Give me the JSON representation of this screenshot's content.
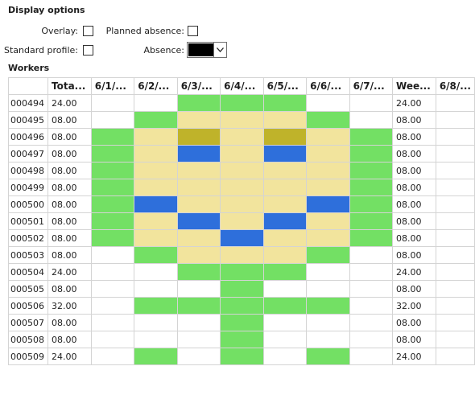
{
  "display_options": {
    "title": "Display options",
    "overlay_label": "Overlay:",
    "planned_absence_label": "Planned absence:",
    "standard_profile_label": "Standard profile:",
    "absence_label": "Absence:",
    "absence_color": "#000000"
  },
  "colors": {
    "green": "#73e064",
    "yellow": "#f2e49d",
    "olive": "#bfb32a",
    "blue": "#2e6fdb",
    "empty": "#ffffff"
  },
  "workers": {
    "title": "Workers",
    "columns": [
      "",
      "Tota...",
      "6/1/...",
      "6/2/...",
      "6/3/...",
      "6/4/...",
      "6/5/...",
      "6/6/...",
      "6/7/...",
      "Wee...",
      "6/8/..."
    ],
    "rows": [
      {
        "id": "000494",
        "total": "24.00",
        "week": "24.00",
        "cells": [
          "",
          "",
          "G",
          "G",
          "G",
          "",
          ""
        ]
      },
      {
        "id": "000495",
        "total": "08.00",
        "week": "08.00",
        "cells": [
          "",
          "G",
          "Y",
          "Y",
          "Y",
          "G",
          ""
        ]
      },
      {
        "id": "000496",
        "total": "08.00",
        "week": "08.00",
        "cells": [
          "G",
          "Y",
          "O",
          "Y",
          "O",
          "Y",
          "G"
        ]
      },
      {
        "id": "000497",
        "total": "08.00",
        "week": "08.00",
        "cells": [
          "G",
          "Y",
          "B",
          "Y",
          "B",
          "Y",
          "G"
        ]
      },
      {
        "id": "000498",
        "total": "08.00",
        "week": "08.00",
        "cells": [
          "G",
          "Y",
          "Y",
          "Y",
          "Y",
          "Y",
          "G"
        ]
      },
      {
        "id": "000499",
        "total": "08.00",
        "week": "08.00",
        "cells": [
          "G",
          "Y",
          "Y",
          "Y",
          "Y",
          "Y",
          "G"
        ]
      },
      {
        "id": "000500",
        "total": "08.00",
        "week": "08.00",
        "cells": [
          "G",
          "B",
          "Y",
          "Y",
          "Y",
          "B",
          "G"
        ]
      },
      {
        "id": "000501",
        "total": "08.00",
        "week": "08.00",
        "cells": [
          "G",
          "Y",
          "B",
          "Y",
          "B",
          "Y",
          "G"
        ]
      },
      {
        "id": "000502",
        "total": "08.00",
        "week": "08.00",
        "cells": [
          "G",
          "Y",
          "Y",
          "B",
          "Y",
          "Y",
          "G"
        ]
      },
      {
        "id": "000503",
        "total": "08.00",
        "week": "08.00",
        "cells": [
          "",
          "G",
          "Y",
          "Y",
          "Y",
          "G",
          ""
        ]
      },
      {
        "id": "000504",
        "total": "24.00",
        "week": "24.00",
        "cells": [
          "",
          "",
          "G",
          "G",
          "G",
          "",
          ""
        ]
      },
      {
        "id": "000505",
        "total": "08.00",
        "week": "08.00",
        "cells": [
          "",
          "",
          "",
          "G",
          "",
          "",
          ""
        ]
      },
      {
        "id": "000506",
        "total": "32.00",
        "week": "32.00",
        "cells": [
          "",
          "G",
          "G",
          "G",
          "G",
          "G",
          ""
        ]
      },
      {
        "id": "000507",
        "total": "08.00",
        "week": "08.00",
        "cells": [
          "",
          "",
          "",
          "G",
          "",
          "",
          ""
        ]
      },
      {
        "id": "000508",
        "total": "08.00",
        "week": "08.00",
        "cells": [
          "",
          "",
          "",
          "G",
          "",
          "",
          ""
        ]
      },
      {
        "id": "000509",
        "total": "24.00",
        "week": "24.00",
        "cells": [
          "",
          "G",
          "",
          "G",
          "",
          "G",
          ""
        ]
      }
    ]
  }
}
